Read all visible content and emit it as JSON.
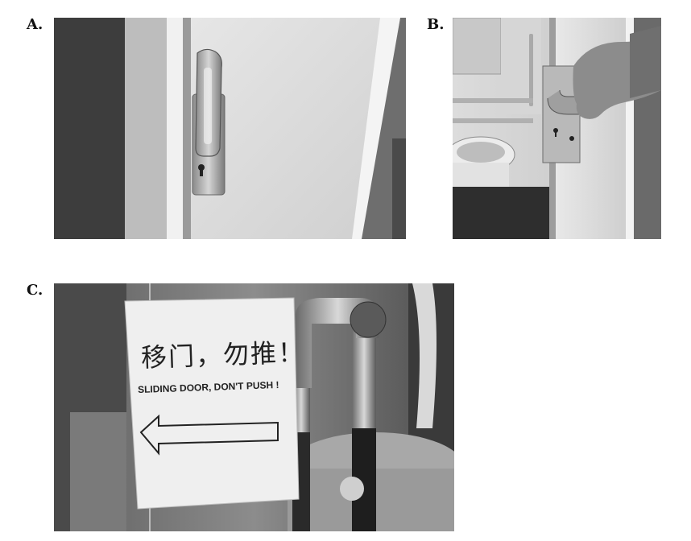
{
  "figure": {
    "panels": [
      {
        "id": "A",
        "label": "A."
      },
      {
        "id": "B",
        "label": "B."
      },
      {
        "id": "C",
        "label": "C."
      }
    ],
    "panel_c_sign": {
      "chinese_text": "移门，勿推！",
      "english_text": "SLIDING DOOR, DON'T PUSH !"
    }
  }
}
